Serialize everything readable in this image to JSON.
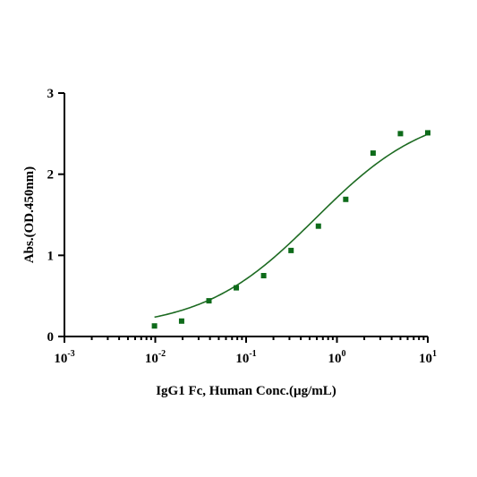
{
  "chart_data": {
    "type": "scatter",
    "title": "",
    "xlabel": "IgG1 Fc, Human Conc.(µg/mL)",
    "ylabel": "Abs.(OD.450nm)",
    "x_scale": "log",
    "xlim": [
      0.001,
      10
    ],
    "ylim": [
      0,
      3
    ],
    "x_ticks": [
      {
        "base": "10",
        "exp": "-3"
      },
      {
        "base": "10",
        "exp": "-2"
      },
      {
        "base": "10",
        "exp": "-1"
      },
      {
        "base": "10",
        "exp": "0"
      },
      {
        "base": "10",
        "exp": "1"
      }
    ],
    "y_ticks": [
      "0",
      "1",
      "2",
      "3"
    ],
    "grid": false,
    "legend": "none",
    "series": [
      {
        "color": "#0e6b1a",
        "points": [
          {
            "x": 0.0098,
            "y": 0.13
          },
          {
            "x": 0.0195,
            "y": 0.19
          },
          {
            "x": 0.039,
            "y": 0.44
          },
          {
            "x": 0.078,
            "y": 0.6
          },
          {
            "x": 0.156,
            "y": 0.75
          },
          {
            "x": 0.3125,
            "y": 1.06
          },
          {
            "x": 0.625,
            "y": 1.36
          },
          {
            "x": 1.25,
            "y": 1.69
          },
          {
            "x": 2.5,
            "y": 2.26
          },
          {
            "x": 5.0,
            "y": 2.5
          },
          {
            "x": 10.0,
            "y": 2.51
          }
        ],
        "fit": {
          "model": "4PL",
          "bottom": 0.09,
          "top": 2.82,
          "ec50": 0.58,
          "hill": 0.7,
          "color": "#1d6b22"
        }
      }
    ]
  }
}
